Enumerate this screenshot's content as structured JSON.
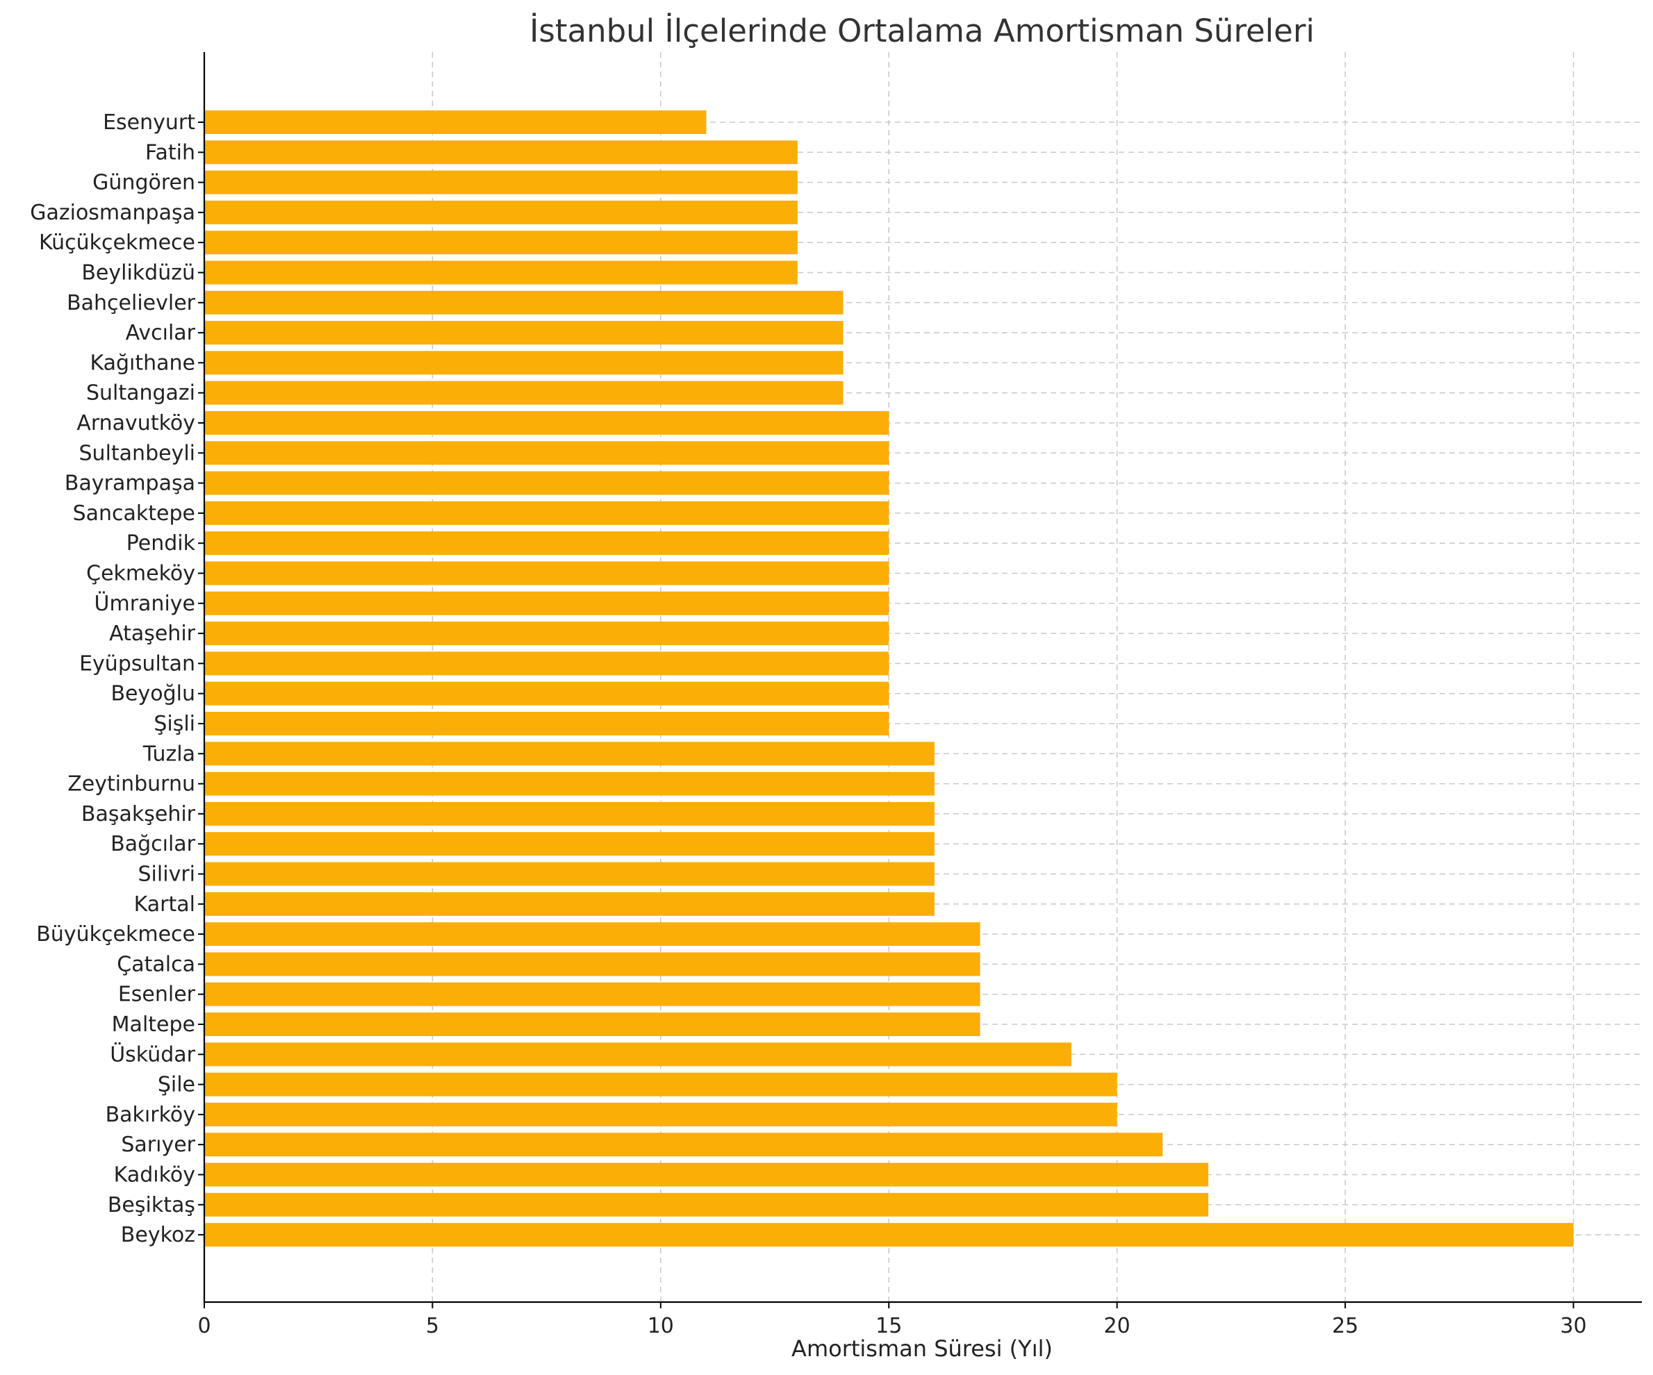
{
  "colors": {
    "bar": "#FBAE06",
    "grid": "#c8c8c8",
    "text": "#222222"
  },
  "chart_data": {
    "type": "bar",
    "orientation": "horizontal",
    "title": "İstanbul İlçelerinde Ortalama Amortisman Süreleri",
    "xlabel": "Amortisman Süresi (Yıl)",
    "ylabel": "",
    "xlim": [
      0,
      31.5
    ],
    "xticks": [
      0,
      5,
      10,
      15,
      20,
      25,
      30
    ],
    "grid": true,
    "categories": [
      "Esenyurt",
      "Fatih",
      "Güngören",
      "Gaziosmanpaşa",
      "Küçükçekmece",
      "Beylikdüzü",
      "Bahçelievler",
      "Avcılar",
      "Kağıthane",
      "Sultangazi",
      "Arnavutköy",
      "Sultanbeyli",
      "Bayrampaşa",
      "Sancaktepe",
      "Pendik",
      "Çekmeköy",
      "Ümraniye",
      "Ataşehir",
      "Eyüpsultan",
      "Beyoğlu",
      "Şişli",
      "Tuzla",
      "Zeytinburnu",
      "Başakşehir",
      "Bağcılar",
      "Silivri",
      "Kartal",
      "Büyükçekmece",
      "Çatalca",
      "Esenler",
      "Maltepe",
      "Üsküdar",
      "Şile",
      "Bakırköy",
      "Sarıyer",
      "Kadıköy",
      "Beşiktaş",
      "Beykoz"
    ],
    "values": [
      11,
      13,
      13,
      13,
      13,
      13,
      14,
      14,
      14,
      14,
      15,
      15,
      15,
      15,
      15,
      15,
      15,
      15,
      15,
      15,
      15,
      16,
      16,
      16,
      16,
      16,
      16,
      17,
      17,
      17,
      17,
      19,
      20,
      20,
      21,
      22,
      22,
      30
    ]
  }
}
